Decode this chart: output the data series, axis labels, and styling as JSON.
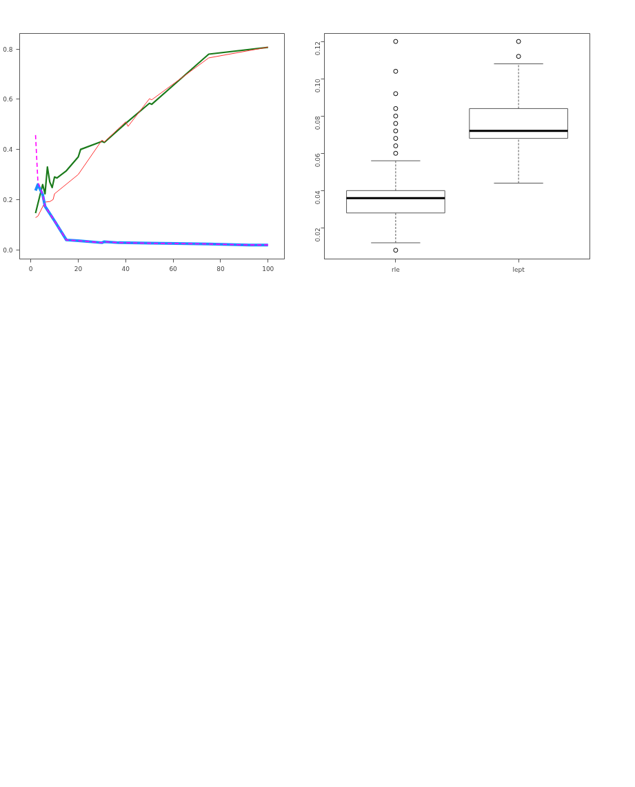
{
  "chart_data": [
    {
      "type": "line",
      "xlim": [
        -4.7,
        106.9
      ],
      "ylim": [
        -0.037,
        0.8625
      ],
      "xticks": [
        0,
        20,
        40,
        60,
        80,
        100
      ],
      "yticks": [
        {
          "value": 0,
          "label": "0.0"
        },
        0.2,
        0.4,
        0.6,
        0.8
      ],
      "grid": false,
      "series": [
        {
          "color": "#1a7a1a",
          "line_style": "solid",
          "x": [
            2,
            5,
            6,
            7,
            8,
            9,
            10,
            11,
            15,
            20,
            21,
            30,
            31,
            40,
            50,
            51,
            75,
            100
          ],
          "values": [
            0.146,
            0.26,
            0.223,
            0.33,
            0.27,
            0.248,
            0.29,
            0.286,
            0.315,
            0.37,
            0.4,
            0.432,
            0.428,
            0.504,
            0.584,
            0.58,
            0.78,
            0.807
          ]
        },
        {
          "color": "#ff3030",
          "line_style": "solid",
          "x": [
            2,
            3,
            6,
            8,
            9.4,
            10,
            20,
            30,
            31,
            40,
            41,
            50,
            51,
            75,
            100
          ],
          "values": [
            0.128,
            0.134,
            0.19,
            0.192,
            0.2,
            0.223,
            0.3,
            0.437,
            0.43,
            0.51,
            0.492,
            0.602,
            0.598,
            0.765,
            0.808
          ]
        },
        {
          "color": "#1e8cff",
          "line_style": "solid",
          "x": [
            2,
            3,
            5,
            6,
            8,
            10,
            15,
            20,
            30,
            31,
            37,
            50,
            75,
            92,
            100
          ],
          "values": [
            0.236,
            0.26,
            0.22,
            0.173,
            0.144,
            0.115,
            0.039,
            0.036,
            0.028,
            0.032,
            0.028,
            0.026,
            0.023,
            0.019,
            0.019
          ]
        },
        {
          "color": "#ff00ff",
          "line_style": "dashed",
          "x": [
            2,
            3,
            5,
            6,
            8,
            10,
            15,
            20,
            30,
            31,
            37,
            50,
            75,
            92,
            100
          ],
          "values": [
            0.457,
            0.27,
            0.22,
            0.173,
            0.144,
            0.115,
            0.039,
            0.036,
            0.028,
            0.032,
            0.028,
            0.026,
            0.023,
            0.019,
            0.019
          ]
        }
      ]
    },
    {
      "type": "box",
      "categories": [
        "rle",
        "lept"
      ],
      "ylim": [
        0.0033,
        0.1243
      ],
      "yticks": [
        0.02,
        0.04,
        0.06,
        0.08,
        {
          "value": 0.1,
          "label": "0.10"
        },
        0.12
      ],
      "grid": false,
      "boxes": [
        {
          "low": 0.012,
          "q1": 0.028,
          "median": 0.036,
          "q3": 0.04,
          "high": 0.056,
          "outliers": [
            0.12,
            0.104,
            0.092,
            0.084,
            0.08,
            0.076,
            0.072,
            0.068,
            0.064,
            0.06,
            0.008
          ]
        },
        {
          "low": 0.044,
          "q1": 0.068,
          "median": 0.072,
          "q3": 0.084,
          "high": 0.108,
          "outliers": [
            0.12,
            0.112
          ]
        }
      ]
    }
  ]
}
